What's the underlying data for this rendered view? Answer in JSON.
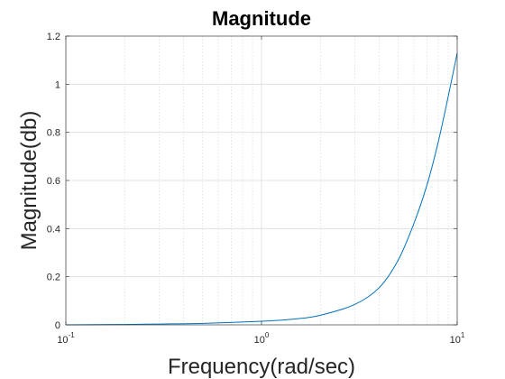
{
  "chart_data": {
    "type": "line",
    "title": "Magnitude",
    "xlabel": "Frequency(rad/sec)",
    "ylabel": "Magnitude(db)",
    "xscale": "log",
    "xlim": [
      0.1,
      10
    ],
    "ylim": [
      0,
      1.2
    ],
    "grid": true,
    "minor_grid_x": true,
    "xticks": [
      {
        "value": 0.1,
        "base": "10",
        "exp": "-1"
      },
      {
        "value": 1,
        "base": "10",
        "exp": "0"
      },
      {
        "value": 10,
        "base": "10",
        "exp": "1"
      }
    ],
    "yticks": [
      {
        "value": 0,
        "label": "0"
      },
      {
        "value": 0.2,
        "label": "0.2"
      },
      {
        "value": 0.4,
        "label": "0.4"
      },
      {
        "value": 0.6,
        "label": "0.6"
      },
      {
        "value": 0.8,
        "label": "0.8"
      },
      {
        "value": 1.0,
        "label": "1"
      },
      {
        "value": 1.2,
        "label": "1.2"
      }
    ],
    "series": [
      {
        "color": "#0072BD",
        "x": [
          0.1,
          0.2,
          0.3,
          0.5,
          1,
          1.5,
          2,
          3,
          4,
          5,
          6,
          7,
          8,
          9,
          10
        ],
        "y": [
          0,
          0.0015,
          0.0035,
          0.006,
          0.015,
          0.025,
          0.04,
          0.085,
          0.155,
          0.27,
          0.42,
          0.58,
          0.76,
          0.95,
          1.13
        ]
      }
    ]
  }
}
